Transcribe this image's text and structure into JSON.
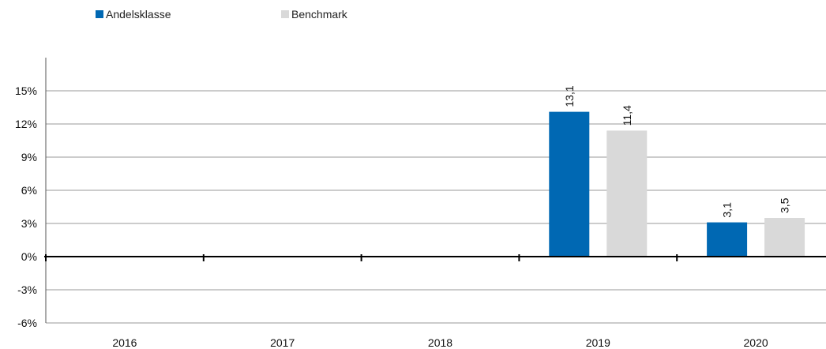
{
  "chart_data": {
    "type": "bar",
    "categories": [
      "2016",
      "2017",
      "2018",
      "2019",
      "2020"
    ],
    "series": [
      {
        "name": "Andelsklasse",
        "color": "#0068b3",
        "values": [
          null,
          null,
          null,
          13.1,
          3.1
        ],
        "labels": [
          "",
          "",
          "",
          "13,1",
          "3,1"
        ]
      },
      {
        "name": "Benchmark",
        "color": "#d9d9d9",
        "values": [
          null,
          null,
          null,
          11.4,
          3.5
        ],
        "labels": [
          "",
          "",
          "",
          "11,4",
          "3,5"
        ]
      }
    ],
    "y_ticks": [
      -6,
      -3,
      0,
      3,
      6,
      9,
      12,
      15
    ],
    "y_tick_labels": [
      "-6%",
      "-3%",
      "0%",
      "3%",
      "6%",
      "9%",
      "12%",
      "15%"
    ],
    "ylim": [
      -6,
      18
    ],
    "grid": true,
    "legend_position": "top-left"
  }
}
